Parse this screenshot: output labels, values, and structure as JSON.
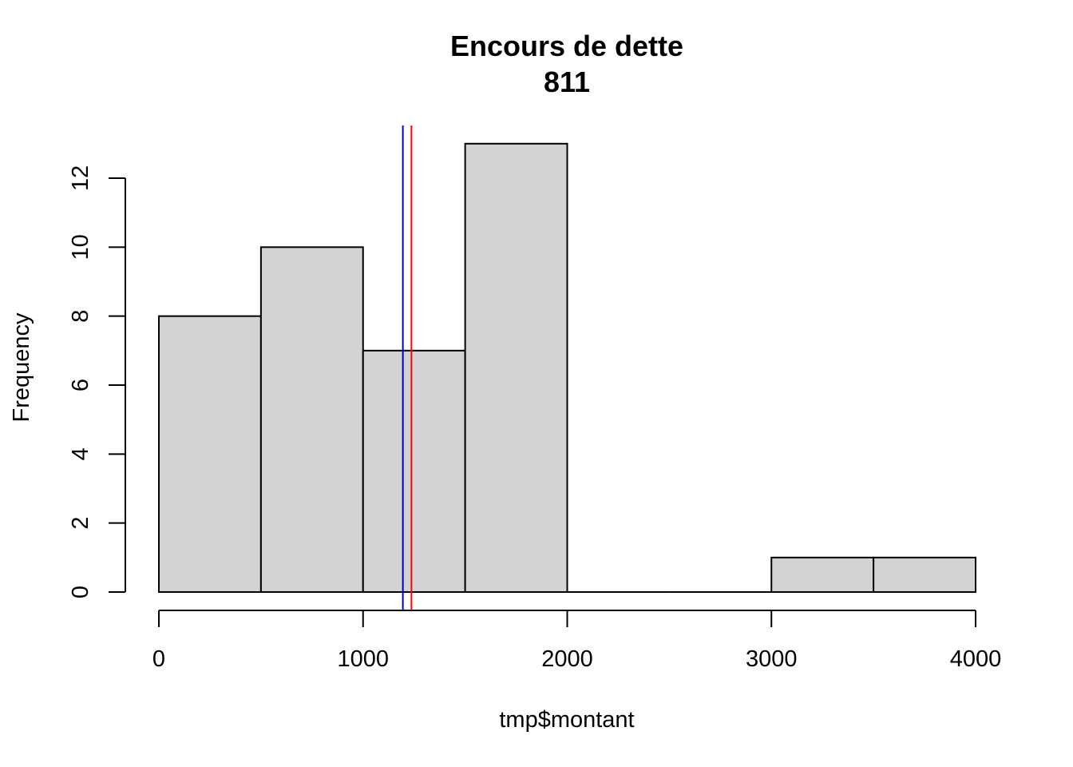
{
  "chart_data": {
    "type": "bar",
    "subtype": "histogram",
    "title": "Encours de dette",
    "subtitle": "811",
    "xlabel": "tmp$montant",
    "ylabel": "Frequency",
    "bins": [
      {
        "from": 0,
        "to": 500,
        "count": 8
      },
      {
        "from": 500,
        "to": 1000,
        "count": 10
      },
      {
        "from": 1000,
        "to": 1500,
        "count": 7
      },
      {
        "from": 1500,
        "to": 2000,
        "count": 13
      },
      {
        "from": 2000,
        "to": 2500,
        "count": 0
      },
      {
        "from": 2500,
        "to": 3000,
        "count": 0
      },
      {
        "from": 3000,
        "to": 3500,
        "count": 1
      },
      {
        "from": 3500,
        "to": 4000,
        "count": 1
      }
    ],
    "xlim": [
      0,
      4000
    ],
    "ylim": [
      0,
      13
    ],
    "xticks": [
      0,
      1000,
      2000,
      3000,
      4000
    ],
    "xtick_labels": [
      "0",
      "1000",
      "2000",
      "3000",
      "4000"
    ],
    "yticks": [
      0,
      2,
      4,
      6,
      8,
      10,
      12
    ],
    "ytick_labels": [
      "0",
      "2",
      "4",
      "6",
      "8",
      "10",
      "12"
    ],
    "grid": false,
    "bar_fill": "#d3d3d3",
    "bar_stroke": "#000000",
    "vlines": [
      {
        "x": 1195,
        "color": "#0000cd"
      },
      {
        "x": 1237,
        "color": "#ff0000"
      }
    ]
  }
}
